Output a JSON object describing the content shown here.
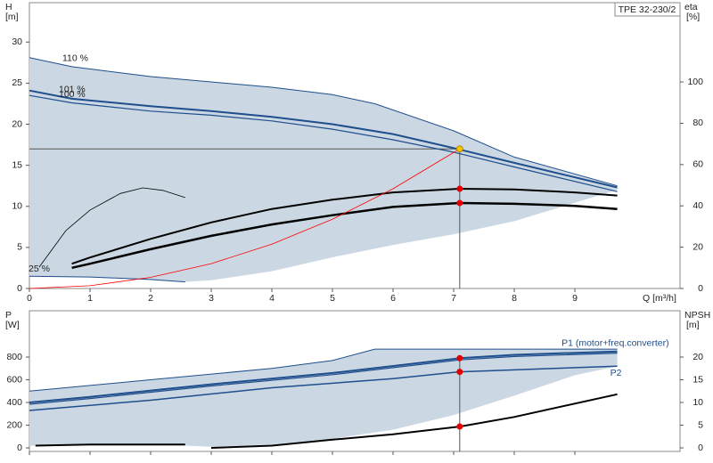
{
  "chart_data": [
    {
      "type": "line",
      "title": "TPE 32-230/2",
      "y_label": "H",
      "y_unit": "[m]",
      "y2_label": "eta",
      "y2_unit": "[%]",
      "x_label": "Q [m³/h]",
      "xlim": [
        0,
        10.735
      ],
      "ylim": [
        0,
        34.8
      ],
      "y2lim": [
        0,
        138.4
      ],
      "xticks": [
        0,
        1,
        2,
        3,
        4,
        5,
        6,
        7,
        8,
        9
      ],
      "yticks": [
        0,
        5,
        10,
        15,
        20,
        25,
        30
      ],
      "y2ticks": [
        0,
        20,
        40,
        60,
        80,
        100
      ],
      "show_xtick_labels": true,
      "regions": [
        {
          "color": "#cbd8e4",
          "x": [
            0,
            0.7,
            2,
            4,
            5,
            5.7,
            7,
            8,
            9.7,
            9.7,
            8,
            7,
            6,
            5,
            4,
            3,
            2.57,
            1,
            0
          ],
          "values": [
            28.1,
            27,
            25.8,
            24.5,
            23.6,
            22.5,
            19.2,
            16,
            12.5,
            12,
            8.2,
            6.6,
            5.3,
            3.8,
            2.1,
            1,
            0.8,
            1.4,
            1.5
          ]
        }
      ],
      "series": [
        {
          "name": "110 %",
          "color": "#1f4e8c",
          "linewidth": 1,
          "x": [
            0,
            0.7,
            2,
            4,
            5,
            5.7,
            7,
            8,
            9.7
          ],
          "values": [
            28.1,
            27,
            25.8,
            24.5,
            23.6,
            22.5,
            19.2,
            16,
            12.5
          ]
        },
        {
          "name": "101 %",
          "color": "#1f4e8c",
          "linewidth": 2,
          "x": [
            0,
            0.7,
            2,
            3,
            4,
            5,
            6,
            7,
            8,
            9.7
          ],
          "values": [
            24.1,
            23.1,
            22.2,
            21.6,
            20.9,
            20,
            18.8,
            17.1,
            15.3,
            12.3
          ]
        },
        {
          "name": "100 %",
          "color": "#1f4e8c",
          "linewidth": 1.2,
          "x": [
            0,
            0.7,
            2,
            3,
            4,
            5,
            6,
            7,
            8,
            9.7
          ],
          "values": [
            23.5,
            22.6,
            21.6,
            21.1,
            20.4,
            19.4,
            18.1,
            16.6,
            14.8,
            11.8
          ]
        },
        {
          "name": "25 %",
          "color": "#1f4e8c",
          "linewidth": 1,
          "x": [
            0,
            1,
            2,
            2.57
          ],
          "values": [
            1.5,
            1.4,
            1.1,
            0.8
          ]
        },
        {
          "color": "#000000",
          "linewidth": 2,
          "axis": "y2",
          "x": [
            0.7,
            1,
            2,
            3,
            4,
            5,
            6,
            7.1,
            8,
            9,
            9.7
          ],
          "values": [
            12,
            15,
            24,
            32,
            38.5,
            43,
            46.5,
            48.3,
            48,
            46.5,
            45
          ]
        },
        {
          "color": "#000000",
          "linewidth": 2.5,
          "axis": "y2",
          "x": [
            0.7,
            1,
            2,
            3,
            4,
            5,
            6,
            7.1,
            8,
            9,
            9.7
          ],
          "values": [
            10,
            12,
            19,
            25.5,
            31,
            35.5,
            39.5,
            41.4,
            41,
            40,
            38.5
          ]
        },
        {
          "color": "#000000",
          "linewidth": 0.8,
          "axis": "y2",
          "x": [
            0.16,
            0.6,
            1,
            1.5,
            1.87,
            2.2,
            2.57
          ],
          "values": [
            10.3,
            28,
            38,
            46,
            48.7,
            47.5,
            44
          ]
        },
        {
          "color": "#ff0000",
          "linewidth": 0.8,
          "x": [
            0,
            1,
            2,
            3,
            4,
            5,
            6,
            7.1
          ],
          "values": [
            0,
            0.34,
            1.35,
            3.03,
            5.4,
            8.43,
            12.14,
            17
          ]
        }
      ],
      "points": [
        {
          "x": 7.1,
          "value": 17,
          "color": "#f5c400",
          "guide": "both"
        },
        {
          "x": 7.1,
          "value": 48.3,
          "color": "#e00000",
          "axis": "y2"
        },
        {
          "x": 7.1,
          "value": 41.4,
          "color": "#e00000",
          "axis": "y2"
        }
      ]
    },
    {
      "type": "line",
      "y_label": "P",
      "y_unit": "[W]",
      "y2_label": "NPSH",
      "y2_unit": "[m]",
      "xlim": [
        0,
        10.735
      ],
      "ylim": [
        -31,
        1208
      ],
      "y2lim": [
        -0.78,
        30.2
      ],
      "xticks": [
        0,
        1,
        2,
        3,
        4,
        5,
        6,
        7,
        8,
        9
      ],
      "yticks": [
        0,
        200,
        400,
        600,
        800
      ],
      "y2ticks": [
        0,
        5,
        10,
        15,
        20
      ],
      "show_xtick_labels": false,
      "regions": [
        {
          "color": "#cbd8e4",
          "x": [
            0,
            2,
            4,
            5,
            5.7,
            9.7,
            9.7,
            9,
            8,
            7,
            6,
            5,
            4,
            3,
            2.57,
            0
          ],
          "values": [
            500,
            600,
            700,
            770,
            870,
            870,
            720,
            640,
            460,
            290,
            160,
            80,
            30,
            10,
            20,
            20
          ]
        }
      ],
      "series": [
        {
          "color": "#1f4e8c",
          "linewidth": 1,
          "x": [
            0,
            2,
            4,
            5,
            5.7,
            9.7
          ],
          "values": [
            500,
            600,
            700,
            770,
            870,
            870
          ]
        },
        {
          "name": "P1 (motor+freq.converter)",
          "color": "#1f4e8c",
          "linewidth": 2,
          "x": [
            0,
            1,
            3,
            5,
            7.1,
            8,
            9.7
          ],
          "values": [
            400,
            450,
            560,
            660,
            790,
            820,
            850
          ]
        },
        {
          "color": "#1f4e8c",
          "linewidth": 1.2,
          "x": [
            0,
            1,
            3,
            5,
            7.1,
            8,
            9.7
          ],
          "values": [
            385,
            435,
            545,
            645,
            775,
            805,
            835
          ]
        },
        {
          "name": "P2",
          "color": "#1f4e8c",
          "linewidth": 1.5,
          "x": [
            0,
            2,
            4,
            6,
            7.1,
            9.7
          ],
          "values": [
            330,
            420,
            530,
            610,
            670,
            720
          ]
        },
        {
          "color": "#000000",
          "linewidth": 2,
          "x": [
            0.1,
            1,
            2.57
          ],
          "values": [
            20,
            30,
            30
          ]
        },
        {
          "color": "#000000",
          "linewidth": 2,
          "axis": "y2",
          "x": [
            3,
            4,
            5,
            6,
            7.1,
            8,
            9.7
          ],
          "values": [
            0,
            0.5,
            1.8,
            3,
            4.7,
            6.8,
            11.8
          ]
        }
      ],
      "points": [
        {
          "x": 7.1,
          "value": 790,
          "color": "#e00000",
          "guide": "vertical"
        },
        {
          "x": 7.1,
          "value": 670,
          "color": "#e00000"
        },
        {
          "x": 7.1,
          "value": 4.7,
          "color": "#e00000",
          "axis": "y2"
        }
      ]
    }
  ]
}
